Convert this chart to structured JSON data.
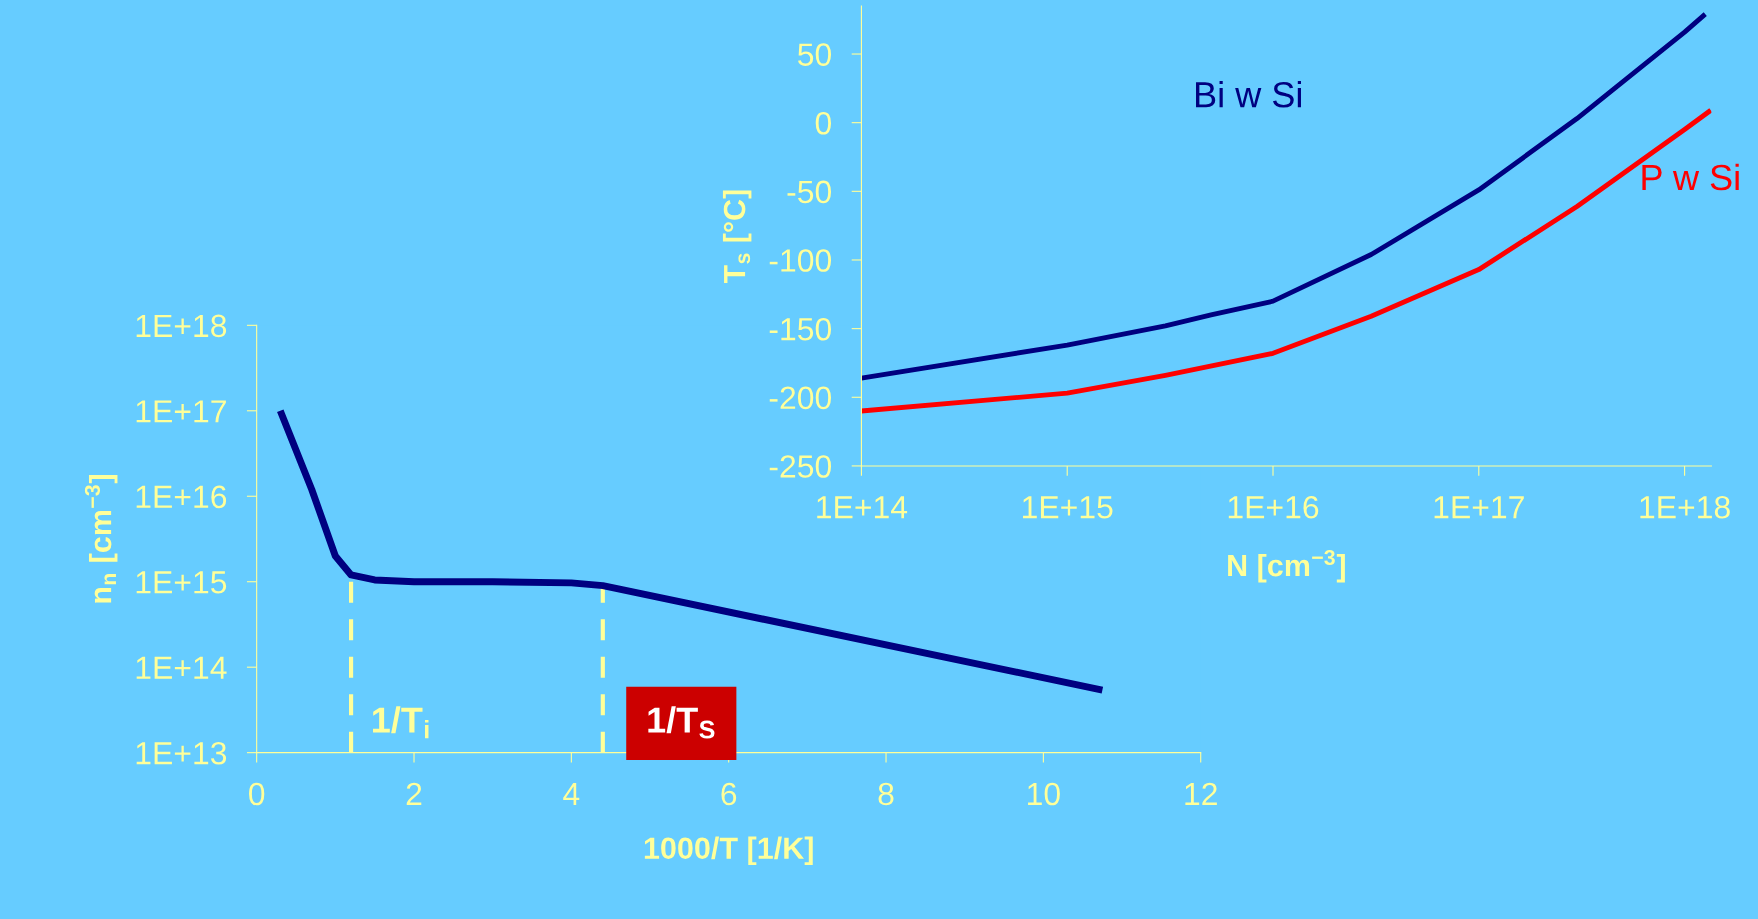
{
  "chart_data": [
    {
      "type": "line",
      "xlabel": "1000/T [1/K]",
      "ylabel": "n$_{n}$ [cm$^{−3}$]",
      "log": "y",
      "grid": false,
      "legend": false,
      "x": [
        0.3,
        0.7,
        1.0,
        1.2,
        1.5,
        2,
        3,
        4,
        4.4,
        10.75
      ],
      "series": [
        {
          "color": "#000080",
          "values": [
            1e+17,
            1.2e+16,
            2000000000000000.0,
            1200000000000000.0,
            1050000000000000.0,
            1000000000000000.0,
            1000000000000000.0,
            970000000000000.0,
            900000000000000.0,
            54000000000000.0
          ]
        }
      ],
      "xlim": [
        0,
        12
      ],
      "xticks": [
        0,
        2,
        4,
        6,
        8,
        10,
        12
      ],
      "ylim": [
        10000000000000.0,
        1e+18
      ],
      "yticks": [
        {
          "value": 10000000000000.0,
          "label": "1E+13"
        },
        {
          "value": 100000000000000.0,
          "label": "1E+14"
        },
        {
          "value": 1000000000000000.0,
          "label": "1E+15"
        },
        {
          "value": 1e+16,
          "label": "1E+16"
        },
        {
          "value": 1e+17,
          "label": "1E+17"
        },
        {
          "value": 1e+18,
          "label": "1E+18"
        }
      ],
      "ref_lines": [
        {
          "axis": "x",
          "value": 1.2,
          "label": "1/T$_{i}$",
          "color": "#ffff99",
          "line_style": "dashed"
        },
        {
          "axis": "x",
          "value": 4.4,
          "label": "1/T$_{S}$",
          "color": "#ffff99",
          "line_style": "dashed"
        }
      ]
    },
    {
      "type": "line",
      "xlabel": "N [cm$^{−3}$]",
      "ylabel": "T$_{s}$ [°C]",
      "log": "x",
      "grid": false,
      "legend": false,
      "series": [
        {
          "name": "Bi w Si",
          "color": "#000080",
          "x": [
            100000000000000.0,
            1000000000000000.0,
            3000000000000000.0,
            5000000000000000.0,
            1e+16,
            3e+16,
            1e+17,
            3e+17,
            1e+18,
            1.26e+18
          ],
          "values": [
            -186,
            -162,
            -148,
            -140,
            -130,
            -96,
            -49,
            3,
            66,
            79
          ]
        },
        {
          "name": "P w Si",
          "color": "#ff0000",
          "x": [
            100000000000000.0,
            1000000000000000.0,
            3000000000000000.0,
            1e+16,
            3e+16,
            1e+17,
            3e+17,
            1e+18,
            1.34e+18
          ],
          "values": [
            -210,
            -197,
            -184,
            -168,
            -141,
            -107,
            -61,
            -5,
            9
          ]
        }
      ],
      "xlim": [
        100000000000000.0,
        1.35e+18
      ],
      "xticks": [
        {
          "value": 100000000000000.0,
          "label": "1E+14"
        },
        {
          "value": 1000000000000000.0,
          "label": "1E+15"
        },
        {
          "value": 1e+16,
          "label": "1E+16"
        },
        {
          "value": 1e+17,
          "label": "1E+17"
        },
        {
          "value": 1e+18,
          "label": "1E+18"
        }
      ],
      "ylim": [
        -250,
        85
      ],
      "yticks": [
        -250,
        -200,
        -150,
        -100,
        -50,
        0,
        50
      ]
    }
  ]
}
